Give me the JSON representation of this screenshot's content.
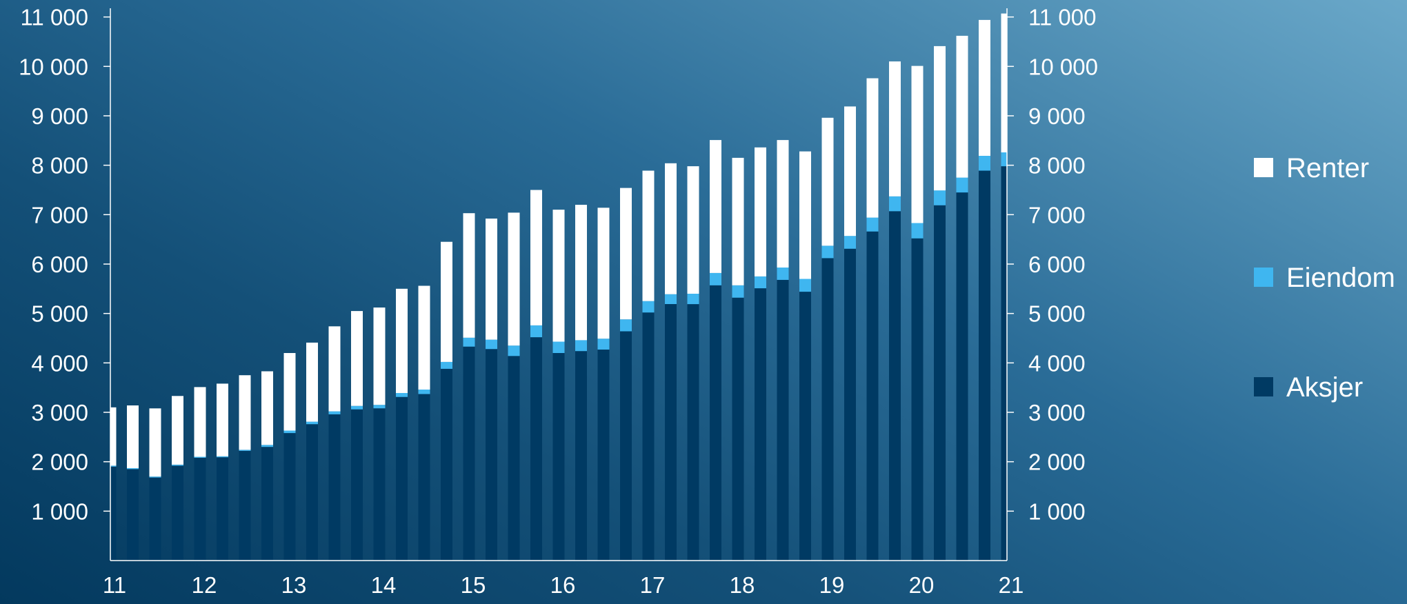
{
  "chart_data": {
    "type": "bar",
    "stacked": true,
    "x_ticks": [
      "11",
      "12",
      "13",
      "14",
      "15",
      "16",
      "17",
      "18",
      "19",
      "20",
      "21"
    ],
    "y_ticks": [
      "1 000",
      "2 000",
      "3 000",
      "4 000",
      "5 000",
      "6 000",
      "7 000",
      "8 000",
      "9 000",
      "10 000",
      "11 000"
    ],
    "ylim": [
      0,
      11000
    ],
    "xlim": [
      2011,
      2021
    ],
    "x_axis": "year (two-digit labels)",
    "dual_y_axis": true,
    "grid": false,
    "legend_position": "right",
    "x": [
      2011.0,
      2011.25,
      2011.5,
      2011.75,
      2012.0,
      2012.25,
      2012.5,
      2012.75,
      2013.0,
      2013.25,
      2013.5,
      2013.75,
      2014.0,
      2014.25,
      2014.5,
      2014.75,
      2015.0,
      2015.25,
      2015.5,
      2015.75,
      2016.0,
      2016.25,
      2016.5,
      2016.75,
      2017.0,
      2017.25,
      2017.5,
      2017.75,
      2018.0,
      2018.25,
      2018.5,
      2018.75,
      2019.0,
      2019.25,
      2019.5,
      2019.75,
      2020.0,
      2020.25,
      2020.5,
      2020.75,
      2021.0
    ],
    "series": [
      {
        "name": "Aksjer",
        "color": "#003a63",
        "values": [
          1900,
          1850,
          1680,
          1920,
          2080,
          2090,
          2220,
          2300,
          2580,
          2760,
          2960,
          3060,
          3080,
          3310,
          3370,
          3880,
          4330,
          4280,
          4140,
          4520,
          4200,
          4240,
          4270,
          4640,
          5020,
          5190,
          5190,
          5570,
          5320,
          5510,
          5680,
          5440,
          6120,
          6310,
          6660,
          7070,
          6520,
          7190,
          7450,
          7890,
          7980
        ]
      },
      {
        "name": "Eiendom",
        "color": "#3fb6f0",
        "values": [
          20,
          20,
          20,
          20,
          20,
          20,
          20,
          40,
          50,
          50,
          60,
          70,
          70,
          80,
          90,
          140,
          180,
          190,
          210,
          240,
          230,
          220,
          220,
          240,
          230,
          200,
          210,
          250,
          250,
          240,
          250,
          260,
          250,
          260,
          280,
          300,
          310,
          300,
          300,
          300,
          280
        ]
      },
      {
        "name": "Renter",
        "color": "#ffffff",
        "values": [
          1180,
          1270,
          1380,
          1390,
          1410,
          1470,
          1510,
          1490,
          1570,
          1600,
          1720,
          1920,
          1970,
          2110,
          2100,
          2430,
          2520,
          2450,
          2690,
          2740,
          2670,
          2740,
          2650,
          2660,
          2640,
          2650,
          2580,
          2690,
          2580,
          2610,
          2580,
          2580,
          2590,
          2620,
          2820,
          2730,
          3180,
          2920,
          2870,
          2750,
          2810
        ]
      }
    ],
    "legend": [
      {
        "label": "Renter",
        "color": "#ffffff"
      },
      {
        "label": "Eiendom",
        "color": "#3fb6f0"
      },
      {
        "label": "Aksjer",
        "color": "#003a63"
      }
    ]
  }
}
